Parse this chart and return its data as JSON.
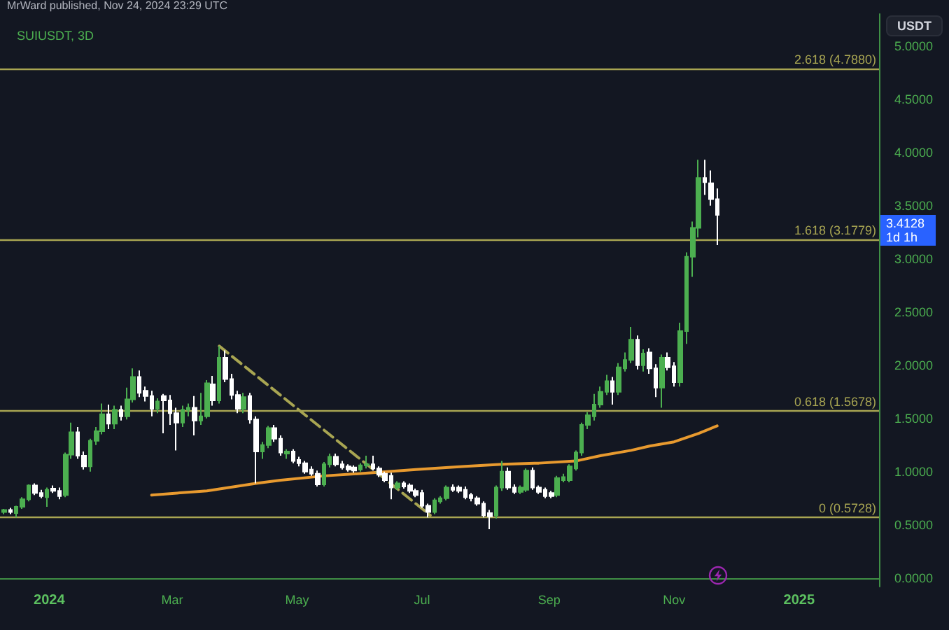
{
  "chart_data": {
    "type": "candlestick",
    "title": "SUIUSDT, 3D",
    "ylabel": "USDT",
    "annotations": [
      "MrWard published, Nov 24, 2024 23:29 UTC",
      "3.4128\n1d 1h"
    ],
    "x": [
      "2023-12-10",
      "2023-12-13",
      "2023-12-16",
      "2023-12-19",
      "2023-12-22",
      "2023-12-25",
      "2023-12-28",
      "2023-12-31",
      "2024-01-03",
      "2024-01-06",
      "2024-01-09",
      "2024-01-12",
      "2024-01-15",
      "2024-01-18",
      "2024-01-21",
      "2024-01-24",
      "2024-01-27",
      "2024-01-30",
      "2024-02-02",
      "2024-02-05",
      "2024-02-08",
      "2024-02-11",
      "2024-02-14",
      "2024-02-17",
      "2024-02-20",
      "2024-02-23",
      "2024-02-26",
      "2024-02-29",
      "2024-03-03",
      "2024-03-06",
      "2024-03-09",
      "2024-03-12",
      "2024-03-15",
      "2024-03-18",
      "2024-03-21",
      "2024-03-24",
      "2024-03-27",
      "2024-03-30",
      "2024-04-02",
      "2024-04-05",
      "2024-04-08",
      "2024-04-11",
      "2024-04-14",
      "2024-04-17",
      "2024-04-20",
      "2024-04-23",
      "2024-04-26",
      "2024-04-29",
      "2024-05-02",
      "2024-05-05",
      "2024-05-08",
      "2024-05-11",
      "2024-05-14",
      "2024-05-17",
      "2024-05-20",
      "2024-05-23",
      "2024-05-26",
      "2024-05-29",
      "2024-06-01",
      "2024-06-04",
      "2024-06-07",
      "2024-06-10",
      "2024-06-13",
      "2024-06-16",
      "2024-06-19",
      "2024-06-22",
      "2024-06-25",
      "2024-06-28",
      "2024-07-01",
      "2024-07-04",
      "2024-07-07",
      "2024-07-10",
      "2024-07-13",
      "2024-07-16",
      "2024-07-19",
      "2024-07-22",
      "2024-07-25",
      "2024-07-28",
      "2024-07-31",
      "2024-08-03",
      "2024-08-06",
      "2024-08-09",
      "2024-08-12",
      "2024-08-15",
      "2024-08-18",
      "2024-08-21",
      "2024-08-24",
      "2024-08-27",
      "2024-08-30",
      "2024-09-02",
      "2024-09-05",
      "2024-09-08",
      "2024-09-11",
      "2024-09-14",
      "2024-09-17",
      "2024-09-20",
      "2024-09-23",
      "2024-09-26",
      "2024-09-29",
      "2024-10-02",
      "2024-10-05",
      "2024-10-08",
      "2024-10-11",
      "2024-10-14",
      "2024-10-17",
      "2024-10-20",
      "2024-10-23",
      "2024-10-26",
      "2024-10-29",
      "2024-11-01",
      "2024-11-04",
      "2024-11-07",
      "2024-11-10",
      "2024-11-13",
      "2024-11-16",
      "2024-11-19",
      "2024-11-22"
    ],
    "ohlc": [
      [
        0.62,
        0.65,
        0.6,
        0.64
      ],
      [
        0.64,
        0.66,
        0.6,
        0.62
      ],
      [
        0.61,
        0.68,
        0.57,
        0.67
      ],
      [
        0.67,
        0.76,
        0.65,
        0.74
      ],
      [
        0.74,
        0.88,
        0.72,
        0.87
      ],
      [
        0.87,
        0.89,
        0.78,
        0.8
      ],
      [
        0.8,
        0.83,
        0.75,
        0.77
      ],
      [
        0.76,
        0.85,
        0.67,
        0.83
      ],
      [
        0.84,
        0.87,
        0.8,
        0.82
      ],
      [
        0.82,
        0.85,
        0.74,
        0.77
      ],
      [
        0.78,
        1.18,
        0.76,
        1.16
      ],
      [
        1.16,
        1.46,
        1.12,
        1.37
      ],
      [
        1.37,
        1.42,
        1.12,
        1.15
      ],
      [
        1.15,
        1.19,
        1.02,
        1.05
      ],
      [
        1.05,
        1.31,
        1.0,
        1.29
      ],
      [
        1.29,
        1.42,
        1.25,
        1.38
      ],
      [
        1.38,
        1.64,
        1.35,
        1.54
      ],
      [
        1.54,
        1.63,
        1.4,
        1.45
      ],
      [
        1.45,
        1.62,
        1.4,
        1.58
      ],
      [
        1.58,
        1.62,
        1.48,
        1.52
      ],
      [
        1.52,
        1.79,
        1.49,
        1.68
      ],
      [
        1.68,
        1.97,
        1.65,
        1.89
      ],
      [
        1.89,
        1.95,
        1.7,
        1.74
      ],
      [
        1.76,
        1.8,
        1.66,
        1.71
      ],
      [
        1.71,
        1.76,
        1.52,
        1.59
      ],
      [
        1.59,
        1.69,
        1.55,
        1.66
      ],
      [
        1.71,
        1.73,
        1.36,
        1.67
      ],
      [
        1.67,
        1.72,
        1.44,
        1.55
      ],
      [
        1.55,
        1.6,
        1.2,
        1.46
      ],
      [
        1.46,
        1.62,
        1.42,
        1.58
      ],
      [
        1.58,
        1.64,
        1.52,
        1.6
      ],
      [
        1.6,
        1.71,
        1.34,
        1.48
      ],
      [
        1.48,
        1.74,
        1.44,
        1.52
      ],
      [
        1.52,
        1.86,
        1.5,
        1.83
      ],
      [
        1.82,
        1.9,
        1.62,
        1.67
      ],
      [
        1.67,
        2.18,
        1.64,
        2.07
      ],
      [
        2.07,
        2.14,
        1.84,
        1.87
      ],
      [
        1.87,
        1.92,
        1.68,
        1.72
      ],
      [
        1.72,
        1.76,
        1.55,
        1.59
      ],
      [
        1.59,
        1.74,
        1.55,
        1.7
      ],
      [
        1.71,
        1.74,
        1.45,
        1.49
      ],
      [
        1.49,
        1.52,
        0.89,
        1.19
      ],
      [
        1.19,
        1.28,
        1.12,
        1.25
      ],
      [
        1.25,
        1.43,
        1.22,
        1.41
      ],
      [
        1.41,
        1.44,
        1.28,
        1.31
      ],
      [
        1.31,
        1.34,
        1.15,
        1.18
      ],
      [
        1.17,
        1.21,
        1.12,
        1.19
      ],
      [
        1.19,
        1.21,
        1.08,
        1.1
      ],
      [
        1.11,
        1.14,
        1.05,
        1.08
      ],
      [
        1.08,
        1.1,
        0.98,
        1.0
      ],
      [
        1.02,
        1.05,
        0.96,
        0.98
      ],
      [
        0.98,
        1.01,
        0.86,
        0.88
      ],
      [
        0.88,
        1.09,
        0.86,
        1.07
      ],
      [
        1.07,
        1.17,
        1.04,
        1.14
      ],
      [
        1.14,
        1.17,
        1.05,
        1.07
      ],
      [
        1.07,
        1.1,
        1.02,
        1.04
      ],
      [
        1.05,
        1.07,
        1.0,
        1.02
      ],
      [
        1.04,
        1.06,
        0.99,
        1.01
      ],
      [
        1.02,
        1.08,
        1.0,
        1.06
      ],
      [
        1.06,
        1.15,
        1.03,
        1.07
      ],
      [
        1.07,
        1.15,
        1.01,
        1.03
      ],
      [
        1.03,
        1.05,
        0.95,
        0.97
      ],
      [
        0.98,
        1.0,
        0.9,
        0.92
      ],
      [
        0.96,
        0.99,
        0.74,
        0.85
      ],
      [
        0.85,
        0.91,
        0.83,
        0.89
      ],
      [
        0.89,
        0.91,
        0.84,
        0.86
      ],
      [
        0.87,
        0.89,
        0.8,
        0.82
      ],
      [
        0.82,
        0.84,
        0.76,
        0.78
      ],
      [
        0.8,
        0.83,
        0.66,
        0.68
      ],
      [
        0.68,
        0.7,
        0.57,
        0.62
      ],
      [
        0.62,
        0.75,
        0.6,
        0.73
      ],
      [
        0.72,
        0.77,
        0.7,
        0.75
      ],
      [
        0.75,
        0.87,
        0.73,
        0.85
      ],
      [
        0.85,
        0.88,
        0.81,
        0.83
      ],
      [
        0.85,
        0.87,
        0.8,
        0.82
      ],
      [
        0.83,
        0.86,
        0.74,
        0.76
      ],
      [
        0.78,
        0.8,
        0.72,
        0.75
      ],
      [
        0.75,
        0.77,
        0.68,
        0.7
      ],
      [
        0.7,
        0.72,
        0.57,
        0.59
      ],
      [
        0.61,
        0.64,
        0.46,
        0.58
      ],
      [
        0.59,
        0.87,
        0.56,
        0.85
      ],
      [
        0.85,
        1.1,
        0.82,
        1.0
      ],
      [
        1.0,
        1.04,
        0.83,
        0.85
      ],
      [
        0.85,
        0.88,
        0.79,
        0.81
      ],
      [
        0.81,
        0.87,
        0.79,
        0.85
      ],
      [
        0.83,
        1.03,
        0.81,
        1.01
      ],
      [
        1.01,
        1.04,
        0.83,
        0.85
      ],
      [
        0.85,
        0.87,
        0.79,
        0.81
      ],
      [
        0.83,
        0.85,
        0.75,
        0.77
      ],
      [
        0.8,
        0.82,
        0.75,
        0.77
      ],
      [
        0.78,
        0.96,
        0.76,
        0.94
      ],
      [
        0.92,
        0.98,
        0.9,
        0.95
      ],
      [
        0.92,
        1.07,
        0.9,
        1.05
      ],
      [
        1.03,
        1.2,
        1.01,
        1.18
      ],
      [
        1.18,
        1.46,
        1.15,
        1.44
      ],
      [
        1.44,
        1.56,
        1.4,
        1.53
      ],
      [
        1.52,
        1.73,
        1.48,
        1.63
      ],
      [
        1.63,
        1.8,
        1.6,
        1.75
      ],
      [
        1.75,
        1.91,
        1.72,
        1.85
      ],
      [
        1.85,
        1.89,
        1.63,
        1.75
      ],
      [
        1.75,
        2.02,
        1.72,
        1.98
      ],
      [
        1.97,
        2.12,
        1.94,
        2.05
      ],
      [
        2.05,
        2.36,
        2.02,
        2.24
      ],
      [
        2.24,
        2.28,
        1.96,
        2.0
      ],
      [
        2.0,
        2.15,
        1.94,
        2.11
      ],
      [
        2.12,
        2.16,
        1.92,
        1.97
      ],
      [
        1.97,
        2.01,
        1.7,
        1.79
      ],
      [
        1.79,
        2.1,
        1.6,
        2.07
      ],
      [
        2.07,
        2.12,
        1.95,
        1.98
      ],
      [
        1.99,
        2.03,
        1.8,
        1.84
      ],
      [
        1.84,
        2.4,
        1.8,
        2.32
      ],
      [
        2.32,
        3.06,
        2.2,
        3.02
      ],
      [
        3.02,
        3.35,
        2.83,
        3.29
      ],
      [
        3.29,
        3.93,
        3.2,
        3.76
      ],
      [
        3.76,
        3.93,
        3.6,
        3.72
      ],
      [
        3.71,
        3.83,
        3.5,
        3.56
      ],
      [
        3.56,
        3.66,
        3.13,
        3.4128
      ]
    ],
    "colors": [
      "#4caf50",
      "#ffffff",
      "#4caf50",
      "#4caf50",
      "#4caf50",
      "#ffffff",
      "#ffffff",
      "#4caf50",
      "#ffffff",
      "#ffffff",
      "#4caf50",
      "#4caf50",
      "#ffffff",
      "#ffffff",
      "#4caf50",
      "#4caf50",
      "#4caf50",
      "#ffffff",
      "#4caf50",
      "#ffffff",
      "#4caf50",
      "#4caf50",
      "#ffffff",
      "#ffffff",
      "#ffffff",
      "#4caf50",
      "#ffffff",
      "#ffffff",
      "#ffffff",
      "#4caf50",
      "#4caf50",
      "#ffffff",
      "#4caf50",
      "#4caf50",
      "#ffffff",
      "#4caf50",
      "#ffffff",
      "#ffffff",
      "#ffffff",
      "#4caf50",
      "#ffffff",
      "#ffffff",
      "#4caf50",
      "#4caf50",
      "#ffffff",
      "#ffffff",
      "#4caf50",
      "#ffffff",
      "#ffffff",
      "#ffffff",
      "#ffffff",
      "#ffffff",
      "#4caf50",
      "#4caf50",
      "#ffffff",
      "#ffffff",
      "#ffffff",
      "#ffffff",
      "#4caf50",
      "#4caf50",
      "#ffffff",
      "#ffffff",
      "#ffffff",
      "#ffffff",
      "#4caf50",
      "#ffffff",
      "#ffffff",
      "#ffffff",
      "#ffffff",
      "#ffffff",
      "#4caf50",
      "#4caf50",
      "#4caf50",
      "#ffffff",
      "#ffffff",
      "#ffffff",
      "#ffffff",
      "#ffffff",
      "#ffffff",
      "#ffffff",
      "#4caf50",
      "#4caf50",
      "#ffffff",
      "#ffffff",
      "#4caf50",
      "#4caf50",
      "#ffffff",
      "#ffffff",
      "#ffffff",
      "#ffffff",
      "#4caf50",
      "#4caf50",
      "#4caf50",
      "#4caf50",
      "#4caf50",
      "#4caf50",
      "#4caf50",
      "#4caf50",
      "#4caf50",
      "#ffffff",
      "#4caf50",
      "#4caf50",
      "#4caf50",
      "#ffffff",
      "#4caf50",
      "#ffffff",
      "#ffffff",
      "#4caf50",
      "#ffffff",
      "#ffffff",
      "#4caf50",
      "#4caf50",
      "#4caf50",
      "#4caf50",
      "#ffffff",
      "#ffffff",
      "#ffffff"
    ],
    "series": [
      {
        "type": "line",
        "color": "#e89a2f",
        "x": [
          "2024-02-20",
          "2024-03-18",
          "2024-04-11",
          "2024-04-23",
          "2024-05-14",
          "2024-06-07",
          "2024-06-28",
          "2024-07-22",
          "2024-08-09",
          "2024-08-27",
          "2024-09-14",
          "2024-09-26",
          "2024-10-11",
          "2024-10-20",
          "2024-11-01",
          "2024-11-13",
          "2024-11-22"
        ],
        "values": [
          0.78,
          0.82,
          0.89,
          0.92,
          0.96,
          0.99,
          1.02,
          1.05,
          1.07,
          1.08,
          1.1,
          1.15,
          1.2,
          1.24,
          1.28,
          1.36,
          1.43
        ]
      },
      {
        "type": "line",
        "color": "#a8a552",
        "line_style": "dashed",
        "x": [
          "2024-03-24",
          "2024-07-05"
        ],
        "values": [
          2.18,
          0.59
        ]
      }
    ],
    "ref_lines": [
      {
        "axis": "y",
        "value": 4.788,
        "label": "2.618 (4.7880)",
        "color": "#a8a552"
      },
      {
        "axis": "y",
        "value": 3.1779,
        "label": "1.618 (3.1779)",
        "color": "#a8a552"
      },
      {
        "axis": "y",
        "value": 1.5678,
        "label": "0.618 (1.5678)",
        "color": "#a8a552"
      },
      {
        "axis": "y",
        "value": 0.5728,
        "label": "0 (0.5728)",
        "color": "#a8a552"
      }
    ],
    "xlim": [
      "2023-12-08",
      "2025-02-09"
    ],
    "xticks": [
      {
        "value": "2024-01-01",
        "label": "2024"
      },
      {
        "value": "2024-03-01",
        "label": "Mar"
      },
      {
        "value": "2024-05-01",
        "label": "May"
      },
      {
        "value": "2024-07-01",
        "label": "Jul"
      },
      {
        "value": "2024-09-01",
        "label": "Sep"
      },
      {
        "value": "2024-11-01",
        "label": "Nov"
      },
      {
        "value": "2025-01-01",
        "label": "2025"
      }
    ],
    "ylim": [
      -0.08,
      5.3
    ],
    "yticks": [
      {
        "value": 0,
        "label": "0.0000"
      },
      {
        "value": 0.5,
        "label": "0.5000"
      },
      {
        "value": 1,
        "label": "1.0000"
      },
      {
        "value": 1.5,
        "label": "1.5000"
      },
      {
        "value": 2,
        "label": "2.0000"
      },
      {
        "value": 2.5,
        "label": "2.5000"
      },
      {
        "value": 3,
        "label": "3.0000"
      },
      {
        "value": 3.5,
        "label": "3.5000"
      },
      {
        "value": 4,
        "label": "4.0000"
      },
      {
        "value": 4.5,
        "label": "4.5000"
      },
      {
        "value": 5,
        "label": "5.0000"
      }
    ],
    "marker": "none"
  }
}
